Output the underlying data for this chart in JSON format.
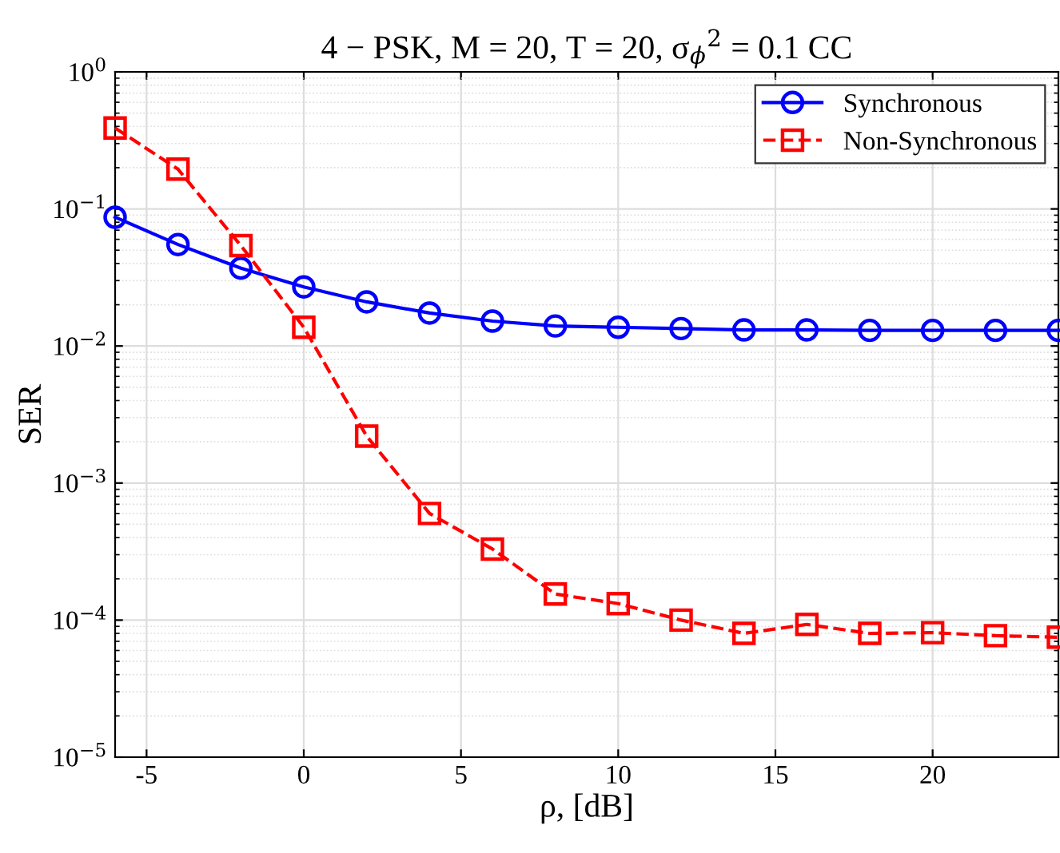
{
  "chart_data": {
    "type": "line",
    "title": "4 − PSK, M = 20, T = 20, σ$_{ϕ}$$^{2}$ = 0.1 CC",
    "xlabel": "ρ, [dB]",
    "ylabel": "SER",
    "x": [
      -6,
      -4,
      -2,
      0,
      2,
      4,
      6,
      8,
      10,
      12,
      14,
      16,
      18,
      20,
      22,
      24
    ],
    "series": [
      {
        "name": "Synchronous",
        "color": "#0000ff",
        "marker": "circle",
        "line_style": "solid",
        "values": [
          0.087,
          0.055,
          0.037,
          0.027,
          0.021,
          0.0174,
          0.0152,
          0.014,
          0.0137,
          0.0134,
          0.0131,
          0.0131,
          0.013,
          0.013,
          0.013,
          0.013
        ]
      },
      {
        "name": "Non-Synchronous",
        "color": "#ff0000",
        "marker": "square",
        "line_style": "dashed",
        "values": [
          0.39,
          0.195,
          0.054,
          0.0137,
          0.0022,
          0.0006,
          0.00033,
          0.000155,
          0.000132,
          0.0001,
          8e-05,
          9.3e-05,
          8e-05,
          8.1e-05,
          7.7e-05,
          7.5e-05
        ]
      }
    ],
    "log": "y",
    "xlim": [
      -6,
      24
    ],
    "xticks": [
      {
        "value": -5,
        "label": "-5"
      },
      0,
      5,
      10,
      15,
      20
    ],
    "ylim": [
      1e-05,
      1
    ],
    "yticks": [
      {
        "value": 1e-05,
        "label": "10$^{−5}$"
      },
      {
        "value": 0.0001,
        "label": "10$^{−4}$"
      },
      {
        "value": 0.001,
        "label": "10$^{−3}$"
      },
      {
        "value": 0.01,
        "label": "10$^{−2}$"
      },
      {
        "value": 0.1,
        "label": "10$^{−1}$"
      },
      {
        "value": 1,
        "label": "10$^{0}$"
      }
    ],
    "grid": true,
    "legend": "top right"
  }
}
